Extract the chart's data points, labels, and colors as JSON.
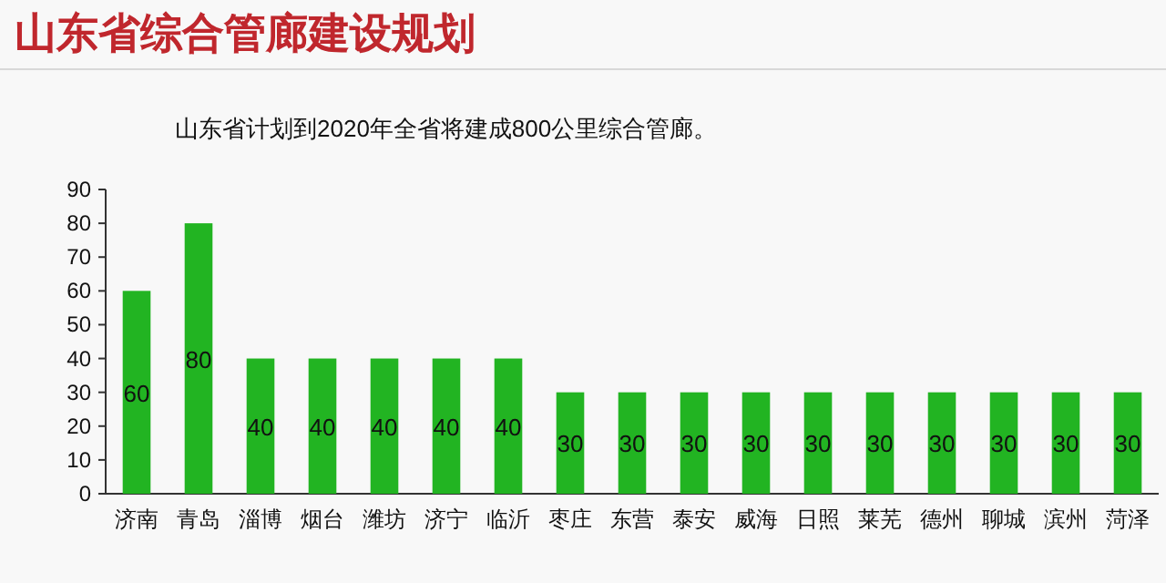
{
  "chart_data": {
    "type": "bar",
    "title": "山东省综合管廊建设规划",
    "subtitle": "山东省计划到2020年全省将建成800公里综合管廊。",
    "categories": [
      "济南",
      "青岛",
      "淄博",
      "烟台",
      "潍坊",
      "济宁",
      "临沂",
      "枣庄",
      "东营",
      "泰安",
      "威海",
      "日照",
      "莱芜",
      "德州",
      "聊城",
      "滨州",
      "菏泽"
    ],
    "values": [
      60,
      80,
      40,
      40,
      40,
      40,
      40,
      30,
      30,
      30,
      30,
      30,
      30,
      30,
      30,
      30,
      30
    ],
    "color": "#22b422",
    "ylim": [
      0,
      90
    ],
    "yticks": [
      0,
      10,
      20,
      30,
      40,
      50,
      60,
      70,
      80,
      90
    ],
    "data_labels": true
  }
}
